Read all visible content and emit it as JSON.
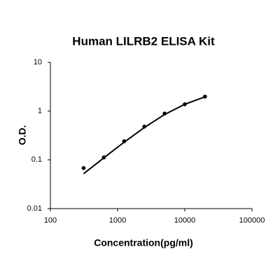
{
  "chart_data": {
    "type": "scatter",
    "title": "Human LILRB2 ELISA Kit",
    "x_label": "Concentration(pg/ml)",
    "y_label": "O.D.",
    "x": [
      312.5,
      625,
      1250,
      2500,
      5000,
      10000,
      20000
    ],
    "values": [
      0.068,
      0.112,
      0.24,
      0.48,
      0.89,
      1.38,
      1.98
    ],
    "fit": [
      0.052,
      0.11,
      0.23,
      0.46,
      0.85,
      1.38,
      1.96
    ],
    "color": "#000000",
    "x_log": true,
    "y_log": true,
    "xlim": [
      100,
      100000
    ],
    "xticks": [
      100,
      1000,
      10000,
      100000
    ],
    "ylim": [
      0.01,
      10
    ],
    "yticks": [
      0.01,
      0.1,
      1,
      10
    ]
  }
}
